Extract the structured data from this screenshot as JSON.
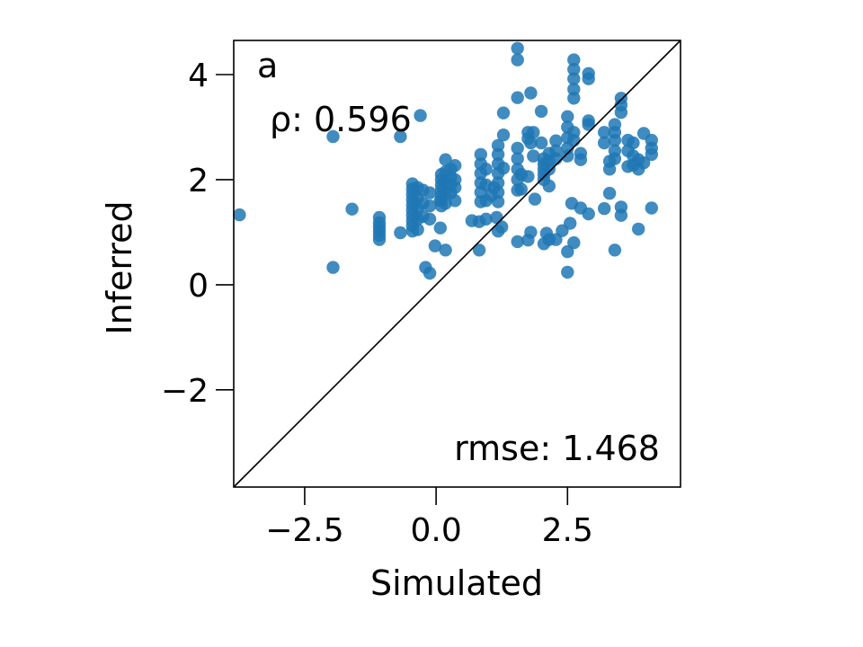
{
  "chart_data": {
    "type": "scatter",
    "panel_label": "a",
    "xlabel": "Simulated",
    "ylabel": "Inferred",
    "xlim": [
      -3.85,
      4.65
    ],
    "ylim": [
      -3.85,
      4.65
    ],
    "xticks": [
      -2.5,
      0.0,
      2.5
    ],
    "xtick_labels": [
      "−2.5",
      "0.0",
      "2.5"
    ],
    "yticks": [
      -2,
      0,
      2,
      4
    ],
    "ytick_labels": [
      "−2",
      "0",
      "2",
      "4"
    ],
    "grid": false,
    "reference_line": "y = x",
    "annotations": {
      "correlation": "ρ: 0.596",
      "rmse": "rmse: 1.468"
    },
    "colors": {
      "points": "#1f77b4",
      "line": "#000000"
    },
    "points": [
      [
        -3.74,
        1.33
      ],
      [
        -1.96,
        2.82
      ],
      [
        -1.96,
        0.33
      ],
      [
        -1.6,
        1.44
      ],
      [
        -1.08,
        1.28
      ],
      [
        -1.08,
        1.18
      ],
      [
        -1.08,
        1.1
      ],
      [
        -1.08,
        1.02
      ],
      [
        -1.08,
        0.94
      ],
      [
        -1.08,
        0.86
      ],
      [
        -0.68,
        2.82
      ],
      [
        -0.68,
        0.99
      ],
      [
        -0.3,
        3.22
      ],
      [
        -0.45,
        1.92
      ],
      [
        -0.45,
        1.82
      ],
      [
        -0.45,
        1.72
      ],
      [
        -0.45,
        1.62
      ],
      [
        -0.45,
        1.52
      ],
      [
        -0.45,
        1.42
      ],
      [
        -0.45,
        1.32
      ],
      [
        -0.45,
        1.22
      ],
      [
        -0.45,
        1.12
      ],
      [
        -0.45,
        1.02
      ],
      [
        -0.35,
        1.85
      ],
      [
        -0.35,
        1.65
      ],
      [
        -0.35,
        1.45
      ],
      [
        -0.35,
        1.25
      ],
      [
        -0.35,
        1.05
      ],
      [
        -0.25,
        1.8
      ],
      [
        -0.25,
        1.55
      ],
      [
        -0.25,
        1.3
      ],
      [
        -0.2,
        0.33
      ],
      [
        -0.12,
        1.75
      ],
      [
        -0.12,
        1.5
      ],
      [
        -0.12,
        1.25
      ],
      [
        -0.12,
        0.22
      ],
      [
        -0.02,
        0.74
      ],
      [
        0.08,
        1.08
      ],
      [
        0.08,
        1.6
      ],
      [
        0.1,
        2.1
      ],
      [
        0.1,
        2.0
      ],
      [
        0.1,
        1.9
      ],
      [
        0.1,
        1.8
      ],
      [
        0.1,
        1.7
      ],
      [
        0.1,
        1.6
      ],
      [
        0.1,
        1.5
      ],
      [
        0.18,
        2.15
      ],
      [
        0.18,
        1.95
      ],
      [
        0.18,
        1.75
      ],
      [
        0.18,
        1.55
      ],
      [
        0.18,
        2.38
      ],
      [
        0.18,
        0.66
      ],
      [
        0.28,
        2.2
      ],
      [
        0.28,
        2.05
      ],
      [
        0.28,
        1.9
      ],
      [
        0.28,
        1.75
      ],
      [
        0.36,
        2.27
      ],
      [
        0.36,
        2.0
      ],
      [
        0.36,
        1.85
      ],
      [
        0.36,
        1.6
      ],
      [
        0.68,
        1.22
      ],
      [
        0.82,
        1.2
      ],
      [
        0.82,
        0.66
      ],
      [
        0.85,
        2.48
      ],
      [
        0.85,
        2.3
      ],
      [
        0.85,
        2.12
      ],
      [
        0.85,
        1.94
      ],
      [
        0.85,
        1.76
      ],
      [
        0.85,
        1.58
      ],
      [
        0.95,
        2.2
      ],
      [
        0.95,
        1.9
      ],
      [
        0.95,
        1.6
      ],
      [
        0.95,
        1.25
      ],
      [
        1.05,
        1.7
      ],
      [
        1.1,
        1.85
      ],
      [
        1.15,
        1.28
      ],
      [
        1.18,
        2.65
      ],
      [
        1.18,
        2.48
      ],
      [
        1.18,
        2.3
      ],
      [
        1.18,
        2.12
      ],
      [
        1.18,
        1.94
      ],
      [
        1.18,
        1.76
      ],
      [
        1.18,
        1.58
      ],
      [
        1.18,
        1.02
      ],
      [
        1.25,
        1.1
      ],
      [
        1.28,
        3.27
      ],
      [
        1.28,
        2.85
      ],
      [
        1.28,
        2.22
      ],
      [
        1.55,
        4.5
      ],
      [
        1.55,
        4.28
      ],
      [
        1.55,
        3.56
      ],
      [
        1.55,
        2.6
      ],
      [
        1.55,
        2.4
      ],
      [
        1.55,
        2.2
      ],
      [
        1.55,
        2.0
      ],
      [
        1.55,
        1.8
      ],
      [
        1.55,
        0.82
      ],
      [
        1.62,
        2.1
      ],
      [
        1.62,
        1.82
      ],
      [
        1.75,
        2.9
      ],
      [
        1.75,
        2.78
      ],
      [
        1.75,
        2.06
      ],
      [
        1.75,
        0.85
      ],
      [
        1.8,
        3.65
      ],
      [
        1.8,
        2.7
      ],
      [
        1.8,
        1.0
      ],
      [
        1.85,
        2.9
      ],
      [
        1.85,
        2.45
      ],
      [
        1.88,
        1.63
      ],
      [
        2.0,
        3.3
      ],
      [
        2.0,
        2.7
      ],
      [
        2.05,
        2.4
      ],
      [
        2.05,
        2.3
      ],
      [
        2.05,
        2.2
      ],
      [
        2.05,
        2.1
      ],
      [
        2.05,
        2.0
      ],
      [
        2.05,
        0.78
      ],
      [
        2.1,
        0.98
      ],
      [
        2.15,
        2.5
      ],
      [
        2.15,
        2.35
      ],
      [
        2.15,
        2.2
      ],
      [
        2.15,
        1.88
      ],
      [
        2.15,
        0.86
      ],
      [
        2.28,
        2.74
      ],
      [
        2.28,
        2.55
      ],
      [
        2.28,
        2.4
      ],
      [
        2.28,
        0.86
      ],
      [
        2.4,
        1.03
      ],
      [
        2.5,
        3.2
      ],
      [
        2.5,
        3.0
      ],
      [
        2.5,
        2.8
      ],
      [
        2.5,
        2.6
      ],
      [
        2.5,
        2.45
      ],
      [
        2.5,
        0.63
      ],
      [
        2.5,
        0.24
      ],
      [
        2.55,
        1.17
      ],
      [
        2.58,
        1.55
      ],
      [
        2.62,
        4.28
      ],
      [
        2.62,
        4.1
      ],
      [
        2.62,
        3.92
      ],
      [
        2.62,
        3.72
      ],
      [
        2.62,
        3.55
      ],
      [
        2.62,
        2.9
      ],
      [
        2.62,
        2.75
      ],
      [
        2.62,
        0.8
      ],
      [
        2.75,
        2.5
      ],
      [
        2.75,
        2.38
      ],
      [
        2.75,
        1.46
      ],
      [
        2.9,
        4.02
      ],
      [
        2.9,
        3.92
      ],
      [
        2.9,
        3.12
      ],
      [
        2.9,
        3.05
      ],
      [
        2.9,
        1.35
      ],
      [
        3.2,
        2.9
      ],
      [
        3.2,
        2.7
      ],
      [
        3.2,
        1.45
      ],
      [
        3.3,
        2.35
      ],
      [
        3.3,
        2.2
      ],
      [
        3.3,
        1.74
      ],
      [
        3.4,
        3.05
      ],
      [
        3.4,
        2.9
      ],
      [
        3.4,
        2.75
      ],
      [
        3.4,
        2.55
      ],
      [
        3.4,
        2.4
      ],
      [
        3.4,
        0.66
      ],
      [
        3.52,
        3.55
      ],
      [
        3.52,
        3.42
      ],
      [
        3.52,
        3.28
      ],
      [
        3.52,
        1.48
      ],
      [
        3.52,
        1.32
      ],
      [
        3.65,
        2.75
      ],
      [
        3.65,
        2.55
      ],
      [
        3.65,
        2.25
      ],
      [
        3.75,
        2.7
      ],
      [
        3.75,
        2.45
      ],
      [
        3.75,
        2.28
      ],
      [
        3.85,
        2.38
      ],
      [
        3.85,
        2.2
      ],
      [
        3.85,
        1.06
      ],
      [
        3.95,
        2.88
      ],
      [
        3.95,
        2.32
      ],
      [
        4.1,
        2.75
      ],
      [
        4.1,
        2.6
      ],
      [
        4.1,
        2.48
      ],
      [
        4.1,
        1.46
      ]
    ]
  }
}
